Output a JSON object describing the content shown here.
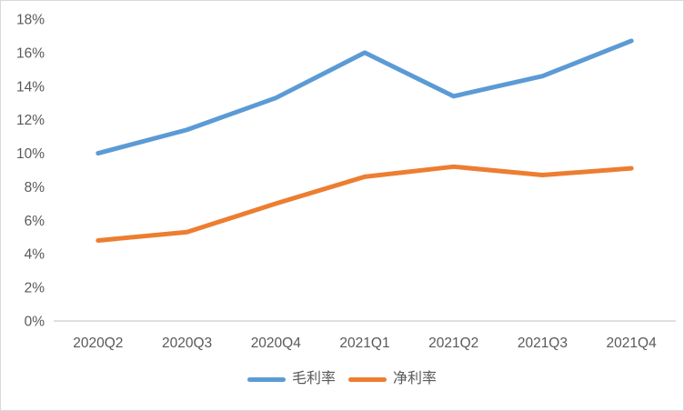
{
  "chart_data": {
    "type": "line",
    "title": "",
    "xlabel": "",
    "ylabel": "",
    "categories": [
      "2020Q2",
      "2020Q3",
      "2020Q4",
      "2021Q1",
      "2021Q2",
      "2021Q3",
      "2021Q4"
    ],
    "series": [
      {
        "name": "毛利率",
        "color": "#5B9BD5",
        "values": [
          10.0,
          11.4,
          13.3,
          16.0,
          13.4,
          14.6,
          16.7
        ]
      },
      {
        "name": "净利率",
        "color": "#ED7D31",
        "values": [
          4.8,
          5.3,
          7.0,
          8.6,
          9.2,
          8.7,
          9.1
        ]
      }
    ],
    "ylim": [
      0,
      18
    ],
    "y_tick_step": 2,
    "y_tick_labels": [
      "0%",
      "2%",
      "4%",
      "6%",
      "8%",
      "10%",
      "12%",
      "14%",
      "16%",
      "18%"
    ],
    "grid": false,
    "legend_position": "bottom"
  },
  "style": {
    "axis_line_color": "#BFBFBF",
    "label_color": "#595959",
    "border_color": "#D9D9D9",
    "background_color": "#FFFFFF",
    "line_width": 5
  }
}
